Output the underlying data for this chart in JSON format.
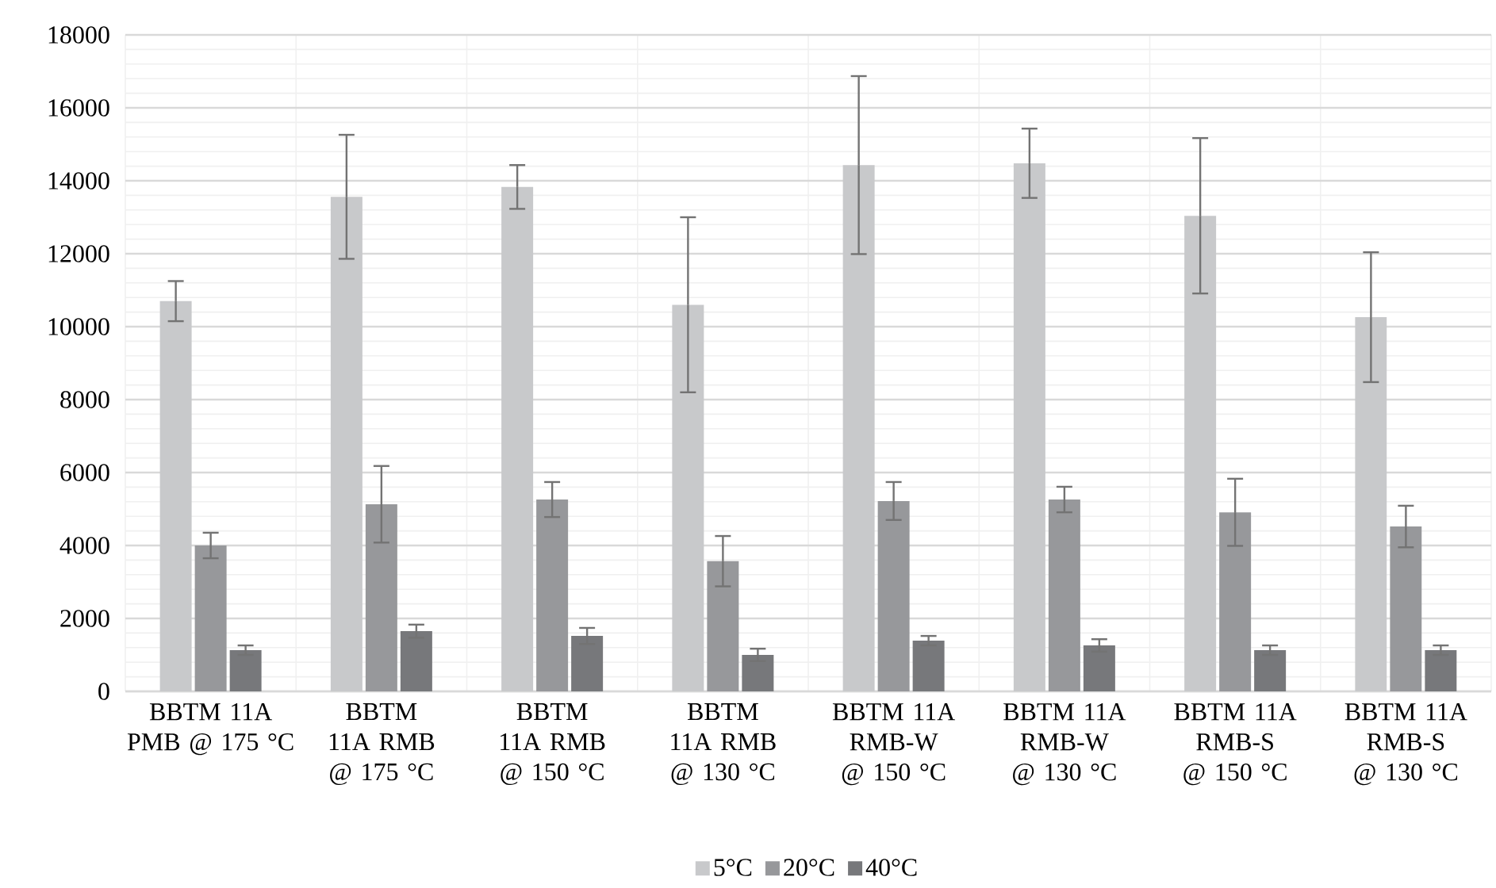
{
  "chart_data": {
    "type": "bar",
    "categories": [
      "BBTM 11A PMB @ 175 °C",
      "BBTM 11A RMB @ 175 °C",
      "BBTM 11A RMB @ 150 °C",
      "BBTM 11A RMB @ 130 °C",
      "BBTM 11A RMB-W @ 150 °C",
      "BBTM 11A RMB-W @ 130 °C",
      "BBTM 11A RMB-S @ 150 °C",
      "BBTM 11A RMB-S @ 130 °C"
    ],
    "series": [
      {
        "name": "5°C",
        "color": "#c8c9cb",
        "values": [
          10700,
          13560,
          13830,
          10600,
          14430,
          14480,
          13040,
          10260
        ],
        "errors": [
          550,
          1700,
          600,
          2400,
          2440,
          950,
          2130,
          1780
        ]
      },
      {
        "name": "20°C",
        "color": "#97989b",
        "values": [
          4000,
          5130,
          5260,
          3570,
          5220,
          5260,
          4910,
          4520
        ],
        "errors": [
          350,
          1050,
          480,
          690,
          520,
          350,
          920,
          570
        ]
      },
      {
        "name": "40°C",
        "color": "#77787b",
        "values": [
          1130,
          1650,
          1520,
          1000,
          1390,
          1260,
          1130,
          1130
        ],
        "errors": [
          130,
          180,
          220,
          170,
          130,
          170,
          130,
          130
        ]
      }
    ],
    "ylim": [
      0,
      18000
    ],
    "yticks": [
      0,
      2000,
      4000,
      6000,
      8000,
      10000,
      12000,
      14000,
      16000,
      18000
    ],
    "grid": true,
    "legend": "bottom"
  }
}
